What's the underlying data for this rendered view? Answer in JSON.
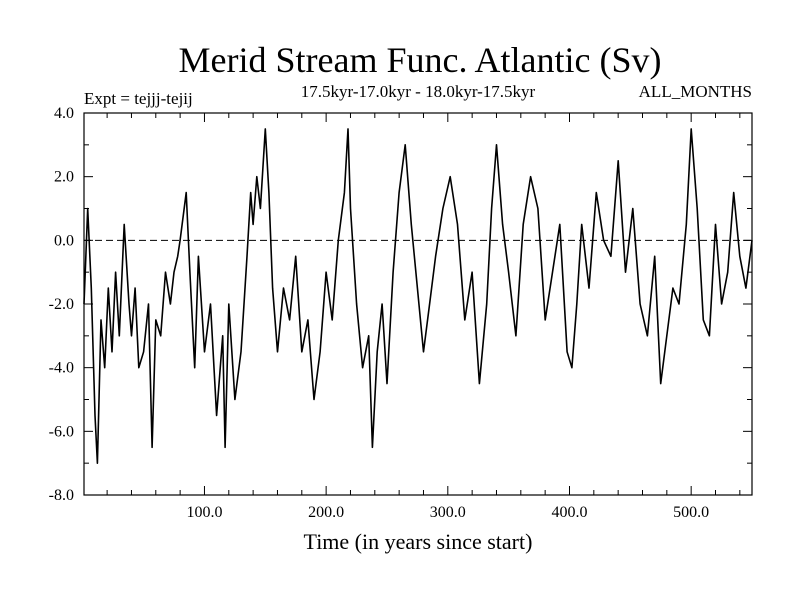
{
  "chart_data": {
    "type": "line",
    "title": "Merid Stream Func. Atlantic (Sv)",
    "subtitle_left": "Expt = tejjj-tejij",
    "subtitle_center": "17.5kyr-17.0kyr - 18.0kyr-17.5kyr",
    "subtitle_right": "ALL_MONTHS",
    "xlabel": "Time (in years since start)",
    "ylabel": "",
    "xlim": [
      1,
      550
    ],
    "ylim": [
      -8.0,
      4.0
    ],
    "x_ticks": [
      {
        "value": 100,
        "label": "100.0"
      },
      {
        "value": 200,
        "label": "200.0"
      },
      {
        "value": 300,
        "label": "300.0"
      },
      {
        "value": 400,
        "label": "400.0"
      },
      {
        "value": 500,
        "label": "500.0"
      }
    ],
    "y_ticks": [
      {
        "value": 4,
        "label": "4.0"
      },
      {
        "value": 2,
        "label": "2.0"
      },
      {
        "value": 0,
        "label": "0.0"
      },
      {
        "value": -2,
        "label": "-2.0"
      },
      {
        "value": -4,
        "label": "-4.0"
      },
      {
        "value": -6,
        "label": "-6.0"
      },
      {
        "value": -8,
        "label": "-8.0"
      }
    ],
    "reference_line": {
      "y": 0.0,
      "style": "dashed"
    },
    "series": [
      {
        "name": "Merid Stream Func. Atlantic",
        "x": [
          1,
          4,
          7,
          10,
          12,
          15,
          18,
          21,
          24,
          27,
          30,
          34,
          38,
          40,
          43,
          46,
          50,
          54,
          57,
          60,
          64,
          68,
          72,
          75,
          78,
          80,
          85,
          88,
          92,
          95,
          100,
          105,
          110,
          115,
          117,
          120,
          125,
          130,
          135,
          138,
          140,
          143,
          146,
          150,
          153,
          156,
          160,
          165,
          170,
          175,
          180,
          185,
          190,
          195,
          200,
          205,
          210,
          215,
          218,
          220,
          225,
          230,
          235,
          238,
          242,
          246,
          250,
          255,
          260,
          265,
          270,
          275,
          280,
          285,
          290,
          296,
          302,
          308,
          314,
          320,
          326,
          332,
          336,
          340,
          345,
          350,
          356,
          362,
          368,
          374,
          380,
          386,
          392,
          398,
          402,
          406,
          410,
          416,
          422,
          428,
          434,
          440,
          446,
          452,
          458,
          464,
          470,
          475,
          480,
          485,
          490,
          496,
          500,
          505,
          510,
          515,
          520,
          525,
          530,
          535,
          540,
          545,
          550
        ],
        "values": [
          -2.0,
          1.0,
          -1.5,
          -5.5,
          -7.0,
          -2.5,
          -4.0,
          -1.5,
          -3.5,
          -1.0,
          -3.0,
          0.5,
          -2.0,
          -3.0,
          -1.5,
          -4.0,
          -3.5,
          -2.0,
          -6.5,
          -2.5,
          -3.0,
          -1.0,
          -2.0,
          -1.0,
          -0.5,
          0.0,
          1.5,
          -1.0,
          -4.0,
          -0.5,
          -3.5,
          -2.0,
          -5.5,
          -3.0,
          -6.5,
          -2.0,
          -5.0,
          -3.5,
          -0.5,
          1.5,
          0.5,
          2.0,
          1.0,
          3.5,
          1.5,
          -1.5,
          -3.5,
          -1.5,
          -2.5,
          -0.5,
          -3.5,
          -2.5,
          -5.0,
          -3.5,
          -1.0,
          -2.5,
          0.0,
          1.5,
          3.5,
          1.0,
          -2.0,
          -4.0,
          -3.0,
          -6.5,
          -3.5,
          -2.0,
          -4.5,
          -1.0,
          1.5,
          3.0,
          0.5,
          -1.5,
          -3.5,
          -2.0,
          -0.5,
          1.0,
          2.0,
          0.5,
          -2.5,
          -1.0,
          -4.5,
          -2.0,
          1.0,
          3.0,
          0.5,
          -1.0,
          -3.0,
          0.5,
          2.0,
          1.0,
          -2.5,
          -1.0,
          0.5,
          -3.5,
          -4.0,
          -2.0,
          0.5,
          -1.5,
          1.5,
          0.0,
          -0.5,
          2.5,
          -1.0,
          1.0,
          -2.0,
          -3.0,
          -0.5,
          -4.5,
          -3.0,
          -1.5,
          -2.0,
          0.5,
          3.5,
          1.0,
          -2.5,
          -3.0,
          0.5,
          -2.0,
          -1.0,
          1.5,
          -0.5,
          -1.5,
          0.0
        ]
      }
    ]
  }
}
